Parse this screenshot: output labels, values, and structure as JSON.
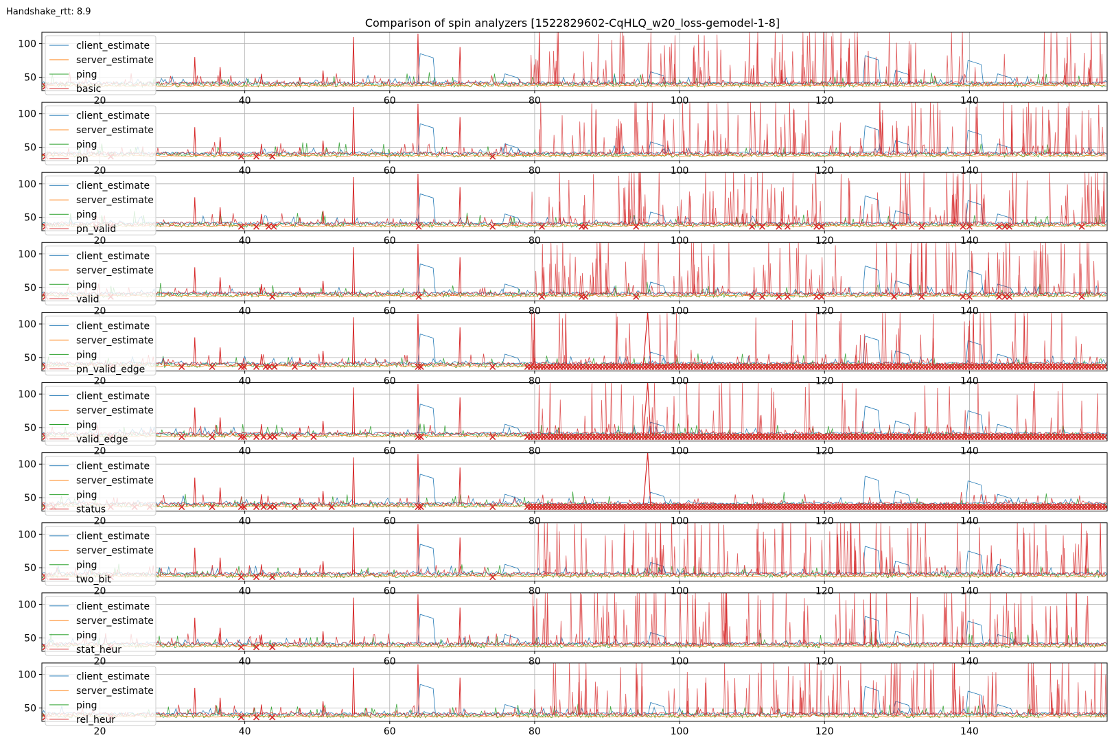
{
  "header": {
    "handshake_label": "Handshake_rtt: 8.9"
  },
  "chart_data": {
    "type": "line",
    "title": "Comparison of spin analyzers [1522829602-CqHLQ_w20_loss-gemodel-1-8]",
    "xlim": [
      12,
      159
    ],
    "ylim": [
      30,
      117
    ],
    "x_ticks": [
      20,
      40,
      60,
      80,
      100,
      120,
      140
    ],
    "y_ticks": [
      50,
      100
    ],
    "grid": true,
    "legend_position": "upper-left",
    "colors": {
      "client_estimate": "#1f77b4",
      "server_estimate": "#ff7f0e",
      "ping": "#2ca02c",
      "analyzer": "#d62728"
    },
    "baseline_levels": {
      "ping": 38,
      "server_estimate": 37,
      "client_estimate": 41,
      "analyzer": 40
    },
    "common_spikes": [
      {
        "x": 33.1,
        "y": 80
      },
      {
        "x": 36.6,
        "y": 65
      },
      {
        "x": 42.3,
        "y": 55
      },
      {
        "x": 47.6,
        "y": 50
      },
      {
        "x": 50.8,
        "y": 60
      },
      {
        "x": 55.0,
        "y": 110
      },
      {
        "x": 63.9,
        "y": 115
      },
      {
        "x": 69.7,
        "y": 95
      }
    ],
    "client_spikes": [
      {
        "x": 64.2,
        "y": 85
      },
      {
        "x": 75.9,
        "y": 55
      },
      {
        "x": 96.0,
        "y": 58
      },
      {
        "x": 125.6,
        "y": 82
      },
      {
        "x": 129.8,
        "y": 60
      },
      {
        "x": 139.8,
        "y": 75
      },
      {
        "x": 143.9,
        "y": 55
      }
    ],
    "panels": [
      {
        "analyzer": "basic",
        "series": [
          "client_estimate",
          "server_estimate",
          "ping",
          "basic"
        ],
        "spike_region_start": 79.5,
        "spike_count": 110,
        "low_markers": [
          12.5
        ]
      },
      {
        "analyzer": "pn",
        "series": [
          "client_estimate",
          "server_estimate",
          "ping",
          "pn"
        ],
        "spike_region_start": 79.5,
        "spike_count": 110,
        "low_markers": [
          12.5,
          21.5,
          39.5,
          41.6,
          43.8,
          74.2
        ]
      },
      {
        "analyzer": "pn_valid",
        "series": [
          "client_estimate",
          "server_estimate",
          "ping",
          "pn_valid"
        ],
        "spike_region_start": 79.5,
        "spike_count": 110,
        "low_markers": [
          12.5,
          19.5,
          21.5,
          39.5,
          41.6,
          43.3,
          44.0,
          64.0,
          74.2,
          81.0,
          86.5,
          87.0,
          94.0,
          110.0,
          111.4,
          113.7,
          114.9,
          118.9,
          119.6,
          129.6,
          133.4,
          139.1,
          140.0,
          144.1,
          144.9,
          145.5,
          155.5
        ]
      },
      {
        "analyzer": "valid",
        "series": [
          "client_estimate",
          "server_estimate",
          "ping",
          "valid"
        ],
        "spike_region_start": 79.5,
        "spike_count": 110,
        "low_markers": [
          12.5,
          21.5,
          43.8,
          64.0,
          81.0,
          86.5,
          87.0,
          94.0,
          110.0,
          111.4,
          113.7,
          114.9,
          118.9,
          119.6,
          129.6,
          133.4,
          139.1,
          140.0,
          144.1,
          144.9,
          145.5,
          155.5
        ]
      },
      {
        "analyzer": "pn_valid_edge",
        "series": [
          "client_estimate",
          "server_estimate",
          "ping",
          "pn_valid_edge"
        ],
        "spike_region_start": 79.5,
        "spike_count": 55,
        "peak": {
          "x": 95.6,
          "y": 117
        },
        "low_markers": [
          12.5,
          21.5,
          31.3,
          35.5,
          39.5,
          39.9,
          41.6,
          42.9,
          43.4,
          44.1,
          46.9,
          49.5,
          63.9,
          64.3,
          74.2
        ],
        "dense_markers": {
          "from": 79.0,
          "to": 159.0,
          "step": 0.45
        }
      },
      {
        "analyzer": "valid_edge",
        "series": [
          "client_estimate",
          "server_estimate",
          "ping",
          "valid_edge"
        ],
        "spike_region_start": 79.5,
        "spike_count": 55,
        "peak": {
          "x": 95.6,
          "y": 117
        },
        "low_markers": [
          12.5,
          19.5,
          21.5,
          31.3,
          35.5,
          39.5,
          39.9,
          41.6,
          42.6,
          43.5,
          44.1,
          46.9,
          49.5,
          63.9,
          64.3,
          74.2
        ],
        "dense_markers": {
          "from": 79.0,
          "to": 159.0,
          "step": 0.45
        }
      },
      {
        "analyzer": "status",
        "series": [
          "client_estimate",
          "server_estimate",
          "ping",
          "status"
        ],
        "spike_region_start": 79.5,
        "spike_count": 0,
        "peak": {
          "x": 95.6,
          "y": 117
        },
        "low_markers": [
          12.5,
          13.6,
          21.5,
          24.8,
          26.9,
          31.3,
          35.5,
          39.5,
          39.9,
          41.6,
          42.6,
          43.5,
          44.1,
          46.9,
          49.5,
          52.0,
          63.9,
          64.3,
          74.2
        ],
        "dense_markers": {
          "from": 79.0,
          "to": 159.0,
          "step": 0.42
        }
      },
      {
        "analyzer": "two_bit",
        "series": [
          "client_estimate",
          "server_estimate",
          "ping",
          "two_bit"
        ],
        "spike_region_start": 79.5,
        "spike_count": 110,
        "low_markers": [
          12.5,
          21.5,
          39.5,
          41.6,
          43.8,
          74.2
        ]
      },
      {
        "analyzer": "stat_heur",
        "series": [
          "client_estimate",
          "server_estimate",
          "ping",
          "stat_heur"
        ],
        "spike_region_start": 79.5,
        "spike_count": 110,
        "low_markers": [
          12.5,
          21.5,
          39.5,
          41.6,
          43.8
        ]
      },
      {
        "analyzer": "rel_heur",
        "series": [
          "client_estimate",
          "server_estimate",
          "ping",
          "rel_heur"
        ],
        "spike_region_start": 79.5,
        "spike_count": 110,
        "low_markers": [
          12.5,
          21.5,
          39.5,
          41.6,
          43.8
        ]
      }
    ]
  }
}
